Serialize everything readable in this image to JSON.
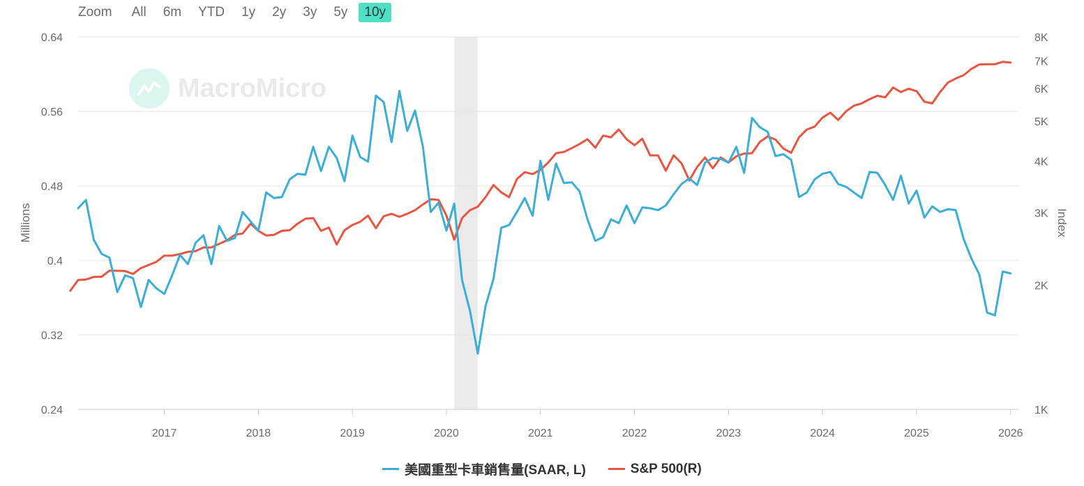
{
  "zoom": {
    "label": "Zoom",
    "options": [
      "All",
      "6m",
      "YTD",
      "1y",
      "2y",
      "3y",
      "5y",
      "10y"
    ],
    "active": "10y"
  },
  "watermark": "MacroMicro",
  "colors": {
    "truck": "#3aaed8",
    "sp500": "#e85540",
    "recession": "#ebebeb",
    "active_zoom": "#4fe0c4",
    "grid": "#e6e6e6"
  },
  "chart_data": {
    "type": "line",
    "xlabel": "",
    "x_ticks": [
      "2017",
      "2018",
      "2019",
      "2020",
      "2021",
      "2022",
      "2023",
      "2024",
      "2025",
      "2026"
    ],
    "xlim": [
      "2016-02",
      "2026-02"
    ],
    "y_left": {
      "label": "Millions",
      "ticks": [
        "0.64",
        "0.56",
        "0.48",
        "0.4",
        "0.32",
        "0.24"
      ],
      "ylim": [
        0.24,
        0.64
      ]
    },
    "y_right": {
      "label": "Index",
      "scale": "log",
      "ticks": [
        "8K",
        "7K",
        "6K",
        "5K",
        "4K",
        "3K",
        "2K",
        "1K"
      ],
      "tick_values": [
        8000,
        7000,
        6000,
        5000,
        4000,
        3000,
        2000,
        1000
      ],
      "ylim": [
        1000,
        8000
      ]
    },
    "shaded_regions": [
      {
        "from": "2020-02",
        "to": "2020-04"
      }
    ],
    "legend_position": "bottom",
    "series": [
      {
        "name": "美國重型卡車銷售量(SAAR, L)",
        "axis": "left",
        "start": "2016-02",
        "values": [
          0.456,
          0.465,
          0.422,
          0.407,
          0.403,
          0.366,
          0.384,
          0.381,
          0.35,
          0.379,
          0.37,
          0.364,
          0.384,
          0.406,
          0.396,
          0.419,
          0.427,
          0.396,
          0.437,
          0.421,
          0.424,
          0.452,
          0.442,
          0.432,
          0.473,
          0.467,
          0.468,
          0.487,
          0.493,
          0.492,
          0.522,
          0.496,
          0.522,
          0.51,
          0.485,
          0.534,
          0.511,
          0.506,
          0.577,
          0.57,
          0.527,
          0.582,
          0.539,
          0.561,
          0.522,
          0.452,
          0.462,
          0.432,
          0.461,
          0.379,
          0.346,
          0.3,
          0.351,
          0.38,
          0.435,
          0.438,
          0.452,
          0.467,
          0.448,
          0.507,
          0.465,
          0.504,
          0.483,
          0.484,
          0.474,
          0.444,
          0.421,
          0.425,
          0.444,
          0.44,
          0.459,
          0.44,
          0.457,
          0.456,
          0.454,
          0.459,
          0.471,
          0.482,
          0.488,
          0.481,
          0.505,
          0.51,
          0.509,
          0.505,
          0.522,
          0.494,
          0.553,
          0.543,
          0.538,
          0.512,
          0.514,
          0.508,
          0.468,
          0.473,
          0.487,
          0.493,
          0.495,
          0.482,
          0.479,
          0.473,
          0.467,
          0.495,
          0.494,
          0.481,
          0.465,
          0.491,
          0.461,
          0.475,
          0.446,
          0.458,
          0.452,
          0.455,
          0.454,
          0.423,
          0.402,
          0.385,
          0.344,
          0.341,
          0.388,
          0.386
        ]
      },
      {
        "name": "S&P 500(R)",
        "axis": "right",
        "start": "2016-01",
        "values": [
          1940,
          2060,
          2065,
          2095,
          2098,
          2170,
          2168,
          2165,
          2130,
          2200,
          2240,
          2280,
          2360,
          2360,
          2380,
          2410,
          2420,
          2470,
          2470,
          2520,
          2570,
          2650,
          2670,
          2820,
          2710,
          2640,
          2650,
          2710,
          2720,
          2820,
          2900,
          2910,
          2710,
          2760,
          2510,
          2720,
          2800,
          2850,
          2950,
          2750,
          2940,
          2980,
          2930,
          2980,
          3040,
          3140,
          3230,
          3220,
          2950,
          2580,
          2910,
          3040,
          3100,
          3270,
          3500,
          3360,
          3270,
          3620,
          3760,
          3720,
          3810,
          3970,
          4180,
          4210,
          4300,
          4400,
          4520,
          4310,
          4610,
          4570,
          4770,
          4520,
          4370,
          4530,
          4130,
          4130,
          3790,
          4130,
          3950,
          3590,
          3870,
          4080,
          3840,
          4080,
          3970,
          4110,
          4170,
          4180,
          4450,
          4590,
          4510,
          4290,
          4190,
          4570,
          4770,
          4850,
          5100,
          5240,
          5030,
          5280,
          5450,
          5520,
          5650,
          5760,
          5710,
          6030,
          5880,
          5990,
          5910,
          5570,
          5520,
          5880,
          6200,
          6340,
          6460,
          6690,
          6860,
          6870,
          6870,
          6960,
          6930
        ]
      }
    ]
  },
  "legend": [
    {
      "label": "美國重型卡車銷售量(SAAR, L)",
      "color": "#3aaed8"
    },
    {
      "label": "S&P 500(R)",
      "color": "#e85540"
    }
  ]
}
